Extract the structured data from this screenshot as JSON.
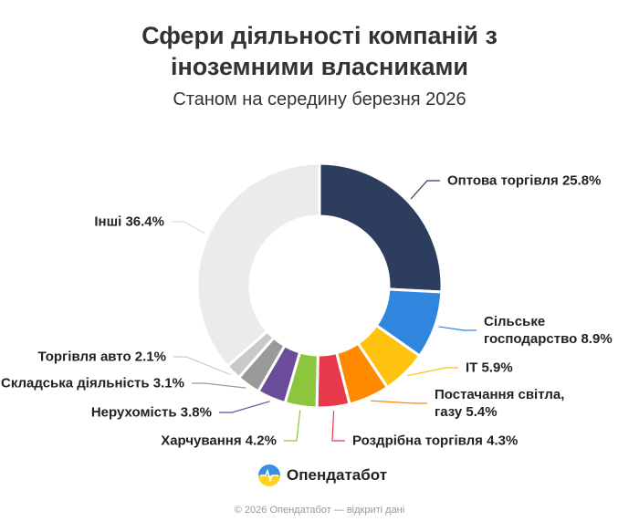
{
  "chart_data": {
    "type": "donut",
    "title": "Сфери діяльності компаній з іноземними власниками",
    "subtitle": "Станом на середину березня 2026",
    "categories": [
      "Оптова торгівля",
      "Сільське господарство",
      "IT",
      "Постачання світла, газу",
      "Роздрібна торгівля",
      "Харчування",
      "Нерухомість",
      "Складська діяльність",
      "Торгівля авто",
      "Інші"
    ],
    "values": [
      25.8,
      8.9,
      5.9,
      5.4,
      4.3,
      4.2,
      3.8,
      3.1,
      2.1,
      36.4
    ],
    "value_labels": [
      "25.8%",
      "8.9%",
      "5.9%",
      "5.4%",
      "4.3%",
      "4.2%",
      "3.8%",
      "3.1%",
      "2.1%",
      "36.4%"
    ],
    "colors": [
      "#2d3d5d",
      "#2e86de",
      "#ffc20e",
      "#ff8a00",
      "#e8394a",
      "#8cc63f",
      "#6b4c9a",
      "#9a9a9a",
      "#c9c9c9",
      "#ebebeb"
    ]
  },
  "brand": {
    "name": "Опендатабот"
  },
  "footer": "© 2026 Опендатабот — відкриті дані"
}
